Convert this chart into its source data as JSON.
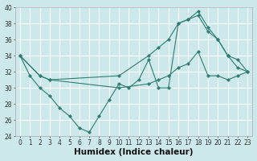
{
  "xlabel": "Humidex (Indice chaleur)",
  "xlim_min": -0.5,
  "xlim_max": 23.5,
  "ylim_min": 24,
  "ylim_max": 40,
  "yticks": [
    24,
    26,
    28,
    30,
    32,
    34,
    36,
    38,
    40
  ],
  "xticks": [
    0,
    1,
    2,
    3,
    4,
    5,
    6,
    7,
    8,
    9,
    10,
    11,
    12,
    13,
    14,
    15,
    16,
    17,
    18,
    19,
    20,
    21,
    22,
    23
  ],
  "bg_color": "#cce8ea",
  "grid_color": "#ffffff",
  "line_color": "#2d7d70",
  "line1_x": [
    0,
    1,
    2,
    3,
    4,
    5,
    6,
    7,
    8,
    9,
    10,
    11,
    12,
    13,
    14,
    15,
    16,
    17,
    18,
    19,
    20,
    21,
    22,
    23
  ],
  "line1_y": [
    34,
    31.5,
    30,
    29,
    27.5,
    26.5,
    25,
    24.5,
    26.5,
    28.5,
    30.5,
    30,
    31,
    33.5,
    30,
    30,
    38,
    38.5,
    39,
    37,
    36,
    34,
    32.5,
    32
  ],
  "line2_x": [
    0,
    2,
    3,
    10,
    13,
    14,
    15,
    16,
    17,
    18,
    19,
    20,
    21,
    22,
    23
  ],
  "line2_y": [
    34,
    31.5,
    31,
    31.5,
    34,
    35,
    36,
    38,
    38.5,
    39.5,
    37.5,
    36,
    34,
    33.5,
    32
  ],
  "line3_x": [
    0,
    2,
    3,
    10,
    13,
    14,
    15,
    16,
    17,
    18,
    19,
    20,
    21,
    22,
    23
  ],
  "line3_y": [
    34,
    31.5,
    31,
    30,
    30.5,
    31,
    31.5,
    32.5,
    33,
    34.5,
    31.5,
    31.5,
    31,
    31.5,
    32
  ],
  "tick_fontsize": 5.5,
  "label_fontsize": 7.5
}
